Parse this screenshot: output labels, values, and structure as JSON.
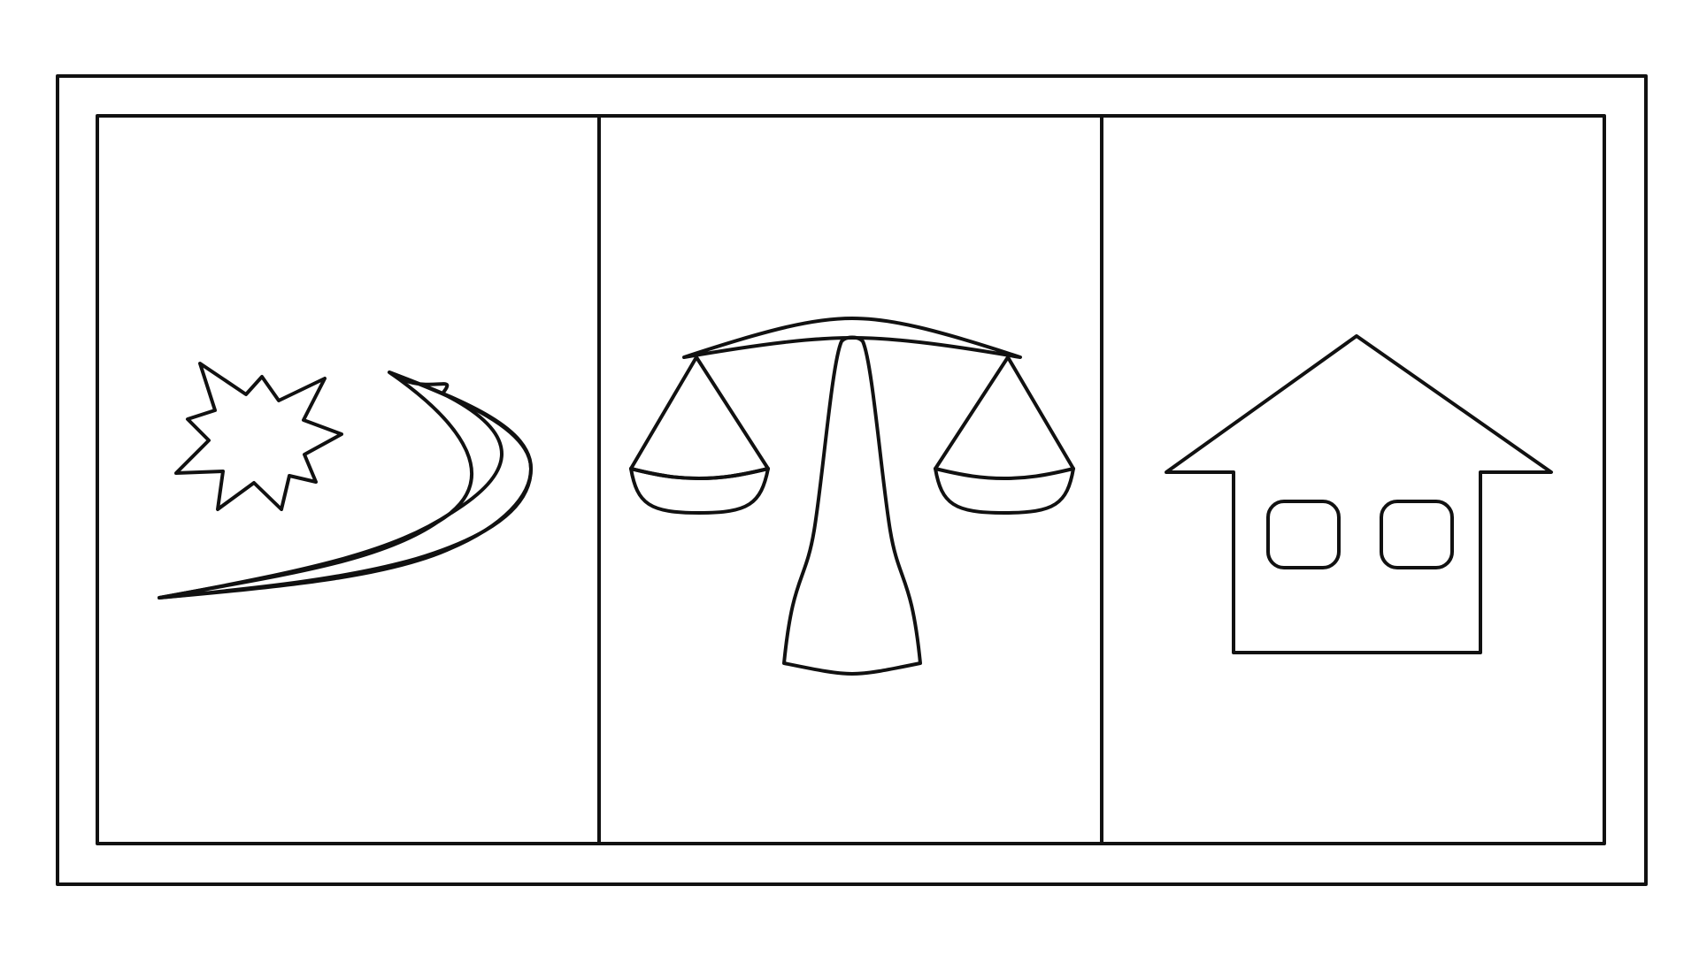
{
  "diagram": {
    "panels": [
      {
        "id": "left",
        "icon": "star-comet-icon"
      },
      {
        "id": "middle",
        "icon": "balance-scale-icon"
      },
      {
        "id": "right",
        "icon": "house-icon"
      }
    ],
    "colors": {
      "stroke": "#111111",
      "background": "#ffffff"
    }
  }
}
